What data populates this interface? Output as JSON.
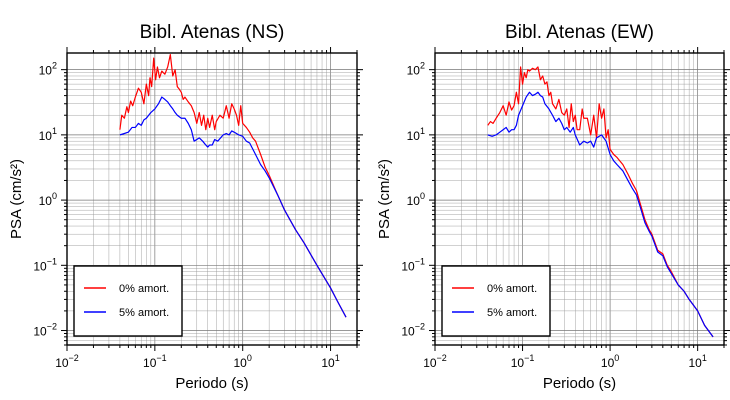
{
  "chart_data": [
    {
      "type": "line",
      "title": "Bibl. Atenas (NS)",
      "xlabel": "Periodo (s)",
      "ylabel": "PSA (cm/s²)",
      "x_scale": "log",
      "y_scale": "log",
      "xlim": [
        0.01,
        20
      ],
      "ylim": [
        0.006,
        180
      ],
      "x_ticks": [
        {
          "value": 0.01,
          "base": "10",
          "exp": "−2"
        },
        {
          "value": 0.1,
          "base": "10",
          "exp": "−1"
        },
        {
          "value": 1,
          "base": "10",
          "exp": "0"
        },
        {
          "value": 10,
          "base": "10",
          "exp": "1"
        }
      ],
      "y_ticks": [
        {
          "value": 0.01,
          "base": "10",
          "exp": "−2"
        },
        {
          "value": 0.1,
          "base": "10",
          "exp": "−1"
        },
        {
          "value": 1,
          "base": "10",
          "exp": "0"
        },
        {
          "value": 10,
          "base": "10",
          "exp": "1"
        },
        {
          "value": 100,
          "base": "10",
          "exp": "2"
        }
      ],
      "grid": true,
      "legend_position": "bottom-left",
      "series": [
        {
          "name": "0% amort.",
          "color": "#ff0000",
          "points": [
            [
              0.04,
              12
            ],
            [
              0.042,
              20
            ],
            [
              0.045,
              18
            ],
            [
              0.048,
              27
            ],
            [
              0.05,
              22
            ],
            [
              0.053,
              33
            ],
            [
              0.056,
              28
            ],
            [
              0.06,
              38
            ],
            [
              0.065,
              52
            ],
            [
              0.07,
              45
            ],
            [
              0.075,
              30
            ],
            [
              0.08,
              60
            ],
            [
              0.085,
              40
            ],
            [
              0.088,
              75
            ],
            [
              0.092,
              55
            ],
            [
              0.097,
              150
            ],
            [
              0.102,
              70
            ],
            [
              0.107,
              110
            ],
            [
              0.113,
              75
            ],
            [
              0.12,
              95
            ],
            [
              0.13,
              85
            ],
            [
              0.14,
              110
            ],
            [
              0.15,
              170
            ],
            [
              0.16,
              80
            ],
            [
              0.17,
              100
            ],
            [
              0.18,
              55
            ],
            [
              0.19,
              50
            ],
            [
              0.2,
              45
            ],
            [
              0.21,
              35
            ],
            [
              0.22,
              38
            ],
            [
              0.24,
              32
            ],
            [
              0.26,
              28
            ],
            [
              0.28,
              22
            ],
            [
              0.3,
              15
            ],
            [
              0.32,
              22
            ],
            [
              0.34,
              14
            ],
            [
              0.36,
              20
            ],
            [
              0.38,
              12
            ],
            [
              0.4,
              18
            ],
            [
              0.42,
              13
            ],
            [
              0.45,
              20
            ],
            [
              0.48,
              12
            ],
            [
              0.5,
              16
            ],
            [
              0.55,
              20
            ],
            [
              0.6,
              18
            ],
            [
              0.65,
              28
            ],
            [
              0.7,
              18
            ],
            [
              0.75,
              30
            ],
            [
              0.8,
              25
            ],
            [
              0.85,
              20
            ],
            [
              0.9,
              14
            ],
            [
              0.95,
              28
            ],
            [
              1.0,
              15
            ],
            [
              1.1,
              13
            ],
            [
              1.2,
              11
            ],
            [
              1.3,
              9
            ],
            [
              1.4,
              8
            ],
            [
              1.6,
              5
            ],
            [
              1.8,
              3.2
            ],
            [
              2.0,
              2.4
            ],
            [
              2.5,
              1.2
            ],
            [
              3.0,
              0.7
            ],
            [
              4.0,
              0.35
            ],
            [
              5.0,
              0.22
            ],
            [
              7.0,
              0.1
            ],
            [
              10.0,
              0.045
            ],
            [
              12.0,
              0.028
            ],
            [
              15.0,
              0.016
            ]
          ]
        },
        {
          "name": "5% amort.",
          "color": "#0000ff",
          "points": [
            [
              0.04,
              10
            ],
            [
              0.045,
              10.5
            ],
            [
              0.05,
              11
            ],
            [
              0.055,
              13
            ],
            [
              0.06,
              13
            ],
            [
              0.065,
              15
            ],
            [
              0.07,
              14
            ],
            [
              0.075,
              17
            ],
            [
              0.08,
              18
            ],
            [
              0.09,
              22
            ],
            [
              0.1,
              25
            ],
            [
              0.11,
              30
            ],
            [
              0.12,
              38
            ],
            [
              0.13,
              35
            ],
            [
              0.14,
              32
            ],
            [
              0.15,
              28
            ],
            [
              0.16,
              25
            ],
            [
              0.17,
              22
            ],
            [
              0.18,
              20
            ],
            [
              0.2,
              18
            ],
            [
              0.22,
              18
            ],
            [
              0.24,
              15
            ],
            [
              0.26,
              12
            ],
            [
              0.28,
              8
            ],
            [
              0.3,
              8.5
            ],
            [
              0.32,
              9
            ],
            [
              0.35,
              8
            ],
            [
              0.38,
              7
            ],
            [
              0.4,
              6.5
            ],
            [
              0.42,
              7
            ],
            [
              0.45,
              7
            ],
            [
              0.48,
              8.5
            ],
            [
              0.52,
              8
            ],
            [
              0.56,
              9
            ],
            [
              0.6,
              10
            ],
            [
              0.65,
              10.5
            ],
            [
              0.7,
              10
            ],
            [
              0.75,
              11.5
            ],
            [
              0.8,
              11
            ],
            [
              0.9,
              10
            ],
            [
              1.0,
              9.5
            ],
            [
              1.1,
              8
            ],
            [
              1.2,
              7.5
            ],
            [
              1.4,
              5
            ],
            [
              1.6,
              3.5
            ],
            [
              1.8,
              2.8
            ],
            [
              2.0,
              2.2
            ],
            [
              2.5,
              1.2
            ],
            [
              3.0,
              0.7
            ],
            [
              4.0,
              0.35
            ],
            [
              5.0,
              0.22
            ],
            [
              7.0,
              0.1
            ],
            [
              10.0,
              0.045
            ],
            [
              12.0,
              0.028
            ],
            [
              15.0,
              0.016
            ]
          ]
        }
      ]
    },
    {
      "type": "line",
      "title": "Bibl. Atenas (EW)",
      "xlabel": "Periodo (s)",
      "ylabel": "PSA (cm/s²)",
      "x_scale": "log",
      "y_scale": "log",
      "xlim": [
        0.01,
        20
      ],
      "ylim": [
        0.006,
        180
      ],
      "x_ticks": [
        {
          "value": 0.01,
          "base": "10",
          "exp": "−2"
        },
        {
          "value": 0.1,
          "base": "10",
          "exp": "−1"
        },
        {
          "value": 1,
          "base": "10",
          "exp": "0"
        },
        {
          "value": 10,
          "base": "10",
          "exp": "1"
        }
      ],
      "y_ticks": [
        {
          "value": 0.01,
          "base": "10",
          "exp": "−2"
        },
        {
          "value": 0.1,
          "base": "10",
          "exp": "−1"
        },
        {
          "value": 1,
          "base": "10",
          "exp": "0"
        },
        {
          "value": 10,
          "base": "10",
          "exp": "1"
        },
        {
          "value": 100,
          "base": "10",
          "exp": "2"
        }
      ],
      "grid": true,
      "legend_position": "bottom-left",
      "series": [
        {
          "name": "0% amort.",
          "color": "#ff0000",
          "points": [
            [
              0.04,
              14
            ],
            [
              0.043,
              16
            ],
            [
              0.046,
              15
            ],
            [
              0.05,
              18
            ],
            [
              0.055,
              22
            ],
            [
              0.06,
              28
            ],
            [
              0.065,
              20
            ],
            [
              0.07,
              32
            ],
            [
              0.075,
              24
            ],
            [
              0.08,
              28
            ],
            [
              0.085,
              45
            ],
            [
              0.09,
              30
            ],
            [
              0.095,
              110
            ],
            [
              0.1,
              60
            ],
            [
              0.105,
              90
            ],
            [
              0.11,
              75
            ],
            [
              0.115,
              100
            ],
            [
              0.12,
              95
            ],
            [
              0.13,
              105
            ],
            [
              0.14,
              100
            ],
            [
              0.15,
              110
            ],
            [
              0.16,
              70
            ],
            [
              0.17,
              80
            ],
            [
              0.18,
              60
            ],
            [
              0.19,
              65
            ],
            [
              0.2,
              40
            ],
            [
              0.21,
              45
            ],
            [
              0.22,
              30
            ],
            [
              0.24,
              25
            ],
            [
              0.26,
              35
            ],
            [
              0.28,
              22
            ],
            [
              0.3,
              20
            ],
            [
              0.32,
              25
            ],
            [
              0.34,
              13
            ],
            [
              0.36,
              30
            ],
            [
              0.38,
              16
            ],
            [
              0.4,
              20
            ],
            [
              0.42,
              12
            ],
            [
              0.45,
              12
            ],
            [
              0.48,
              25
            ],
            [
              0.5,
              18
            ],
            [
              0.55,
              18
            ],
            [
              0.6,
              10
            ],
            [
              0.65,
              20
            ],
            [
              0.7,
              9
            ],
            [
              0.75,
              30
            ],
            [
              0.8,
              18
            ],
            [
              0.85,
              25
            ],
            [
              0.9,
              9
            ],
            [
              0.95,
              12
            ],
            [
              1.0,
              6
            ],
            [
              1.1,
              5
            ],
            [
              1.2,
              4.5
            ],
            [
              1.4,
              3.5
            ],
            [
              1.6,
              2.5
            ],
            [
              1.8,
              1.8
            ],
            [
              2.0,
              1.4
            ],
            [
              2.2,
              0.9
            ],
            [
              2.5,
              0.5
            ],
            [
              2.8,
              0.35
            ],
            [
              3.0,
              0.3
            ],
            [
              3.5,
              0.17
            ],
            [
              4.0,
              0.15
            ],
            [
              4.5,
              0.1
            ],
            [
              5.0,
              0.08
            ],
            [
              6.0,
              0.05
            ],
            [
              7.0,
              0.04
            ],
            [
              8.0,
              0.03
            ],
            [
              10.0,
              0.02
            ],
            [
              12.0,
              0.012
            ],
            [
              15.0,
              0.008
            ]
          ]
        },
        {
          "name": "5% amort.",
          "color": "#0000ff",
          "points": [
            [
              0.04,
              10
            ],
            [
              0.045,
              9.5
            ],
            [
              0.05,
              10
            ],
            [
              0.055,
              11
            ],
            [
              0.06,
              12
            ],
            [
              0.065,
              13
            ],
            [
              0.07,
              11
            ],
            [
              0.075,
              12
            ],
            [
              0.08,
              12
            ],
            [
              0.085,
              14
            ],
            [
              0.09,
              20
            ],
            [
              0.1,
              28
            ],
            [
              0.11,
              38
            ],
            [
              0.12,
              45
            ],
            [
              0.13,
              40
            ],
            [
              0.14,
              42
            ],
            [
              0.15,
              45
            ],
            [
              0.16,
              40
            ],
            [
              0.17,
              38
            ],
            [
              0.18,
              30
            ],
            [
              0.2,
              25
            ],
            [
              0.22,
              20
            ],
            [
              0.24,
              16
            ],
            [
              0.26,
              18
            ],
            [
              0.28,
              15
            ],
            [
              0.3,
              12
            ],
            [
              0.32,
              13
            ],
            [
              0.35,
              11
            ],
            [
              0.38,
              13
            ],
            [
              0.4,
              10
            ],
            [
              0.45,
              7
            ],
            [
              0.5,
              8
            ],
            [
              0.55,
              7.5
            ],
            [
              0.6,
              8
            ],
            [
              0.65,
              6.5
            ],
            [
              0.7,
              9
            ],
            [
              0.8,
              10
            ],
            [
              0.9,
              8
            ],
            [
              1.0,
              5
            ],
            [
              1.1,
              4
            ],
            [
              1.2,
              3.5
            ],
            [
              1.4,
              2.8
            ],
            [
              1.6,
              2
            ],
            [
              1.8,
              1.5
            ],
            [
              2.0,
              1.2
            ],
            [
              2.2,
              0.8
            ],
            [
              2.5,
              0.45
            ],
            [
              2.8,
              0.33
            ],
            [
              3.0,
              0.28
            ],
            [
              3.5,
              0.16
            ],
            [
              4.0,
              0.14
            ],
            [
              4.5,
              0.095
            ],
            [
              5.0,
              0.075
            ],
            [
              6.0,
              0.05
            ],
            [
              7.0,
              0.04
            ],
            [
              8.0,
              0.03
            ],
            [
              10.0,
              0.02
            ],
            [
              12.0,
              0.012
            ],
            [
              15.0,
              0.008
            ]
          ]
        }
      ]
    }
  ]
}
